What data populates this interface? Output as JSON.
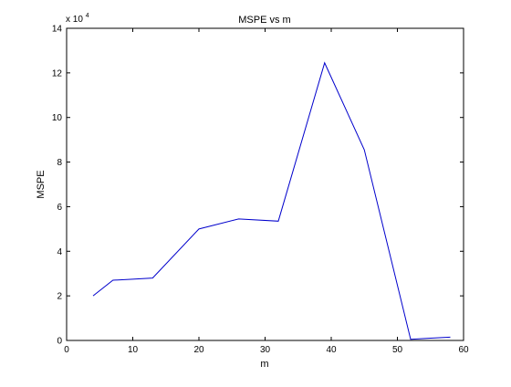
{
  "chart_data": {
    "type": "line",
    "title": "MSPE vs m",
    "xlabel": "m",
    "ylabel": "MSPE",
    "exponent_label": "x 10",
    "exponent_power": "4",
    "xlim": [
      0,
      60
    ],
    "ylim": [
      0,
      14
    ],
    "xticks": [
      "0",
      "10",
      "20",
      "30",
      "40",
      "50",
      "60"
    ],
    "yticks": [
      "0",
      "2",
      "4",
      "6",
      "8",
      "10",
      "12",
      "14"
    ],
    "grid": false,
    "series": [
      {
        "color": "#0000cc",
        "x": [
          4,
          7,
          10,
          13,
          20,
          26,
          32,
          39,
          45,
          52,
          55,
          58
        ],
        "y": [
          2.0,
          2.7,
          2.75,
          2.8,
          5.0,
          5.45,
          5.35,
          12.45,
          8.55,
          0.05,
          0.1,
          0.15
        ]
      }
    ]
  }
}
